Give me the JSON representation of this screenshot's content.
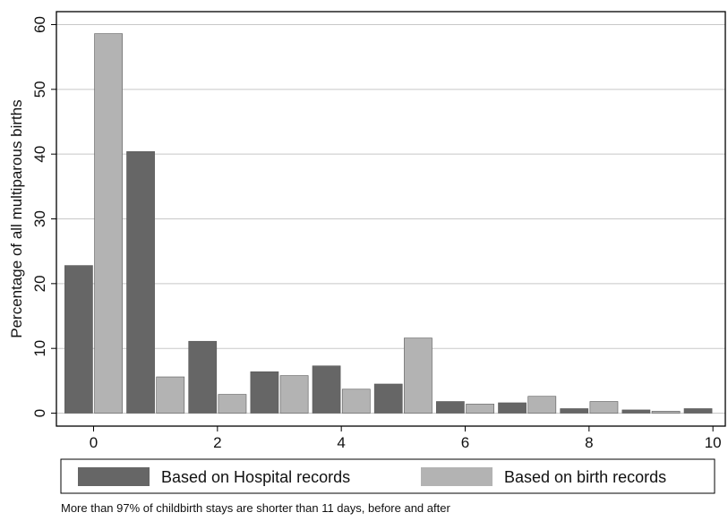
{
  "chart_data": {
    "type": "bar",
    "x": [
      0,
      1,
      2,
      3,
      4,
      5,
      6,
      7,
      8,
      9,
      10
    ],
    "xlim": [
      -0.6,
      10.2
    ],
    "ylim": [
      -2,
      62
    ],
    "xticks": [
      "0",
      "2",
      "4",
      "6",
      "8",
      "10"
    ],
    "yticks": [
      "0",
      "10",
      "20",
      "30",
      "40",
      "50",
      "60"
    ],
    "xlabel": "",
    "ylabel": "Percentage of all multiparous births",
    "grid": true,
    "legend_position": "bottom",
    "series": [
      {
        "name": "Based on Hospital records",
        "color": "#666666",
        "values": [
          22.8,
          40.4,
          11.1,
          6.4,
          7.3,
          4.5,
          1.8,
          1.6,
          0.7,
          0.5,
          0.7
        ]
      },
      {
        "name": "Based on birth records",
        "color": "#b3b3b3",
        "values": [
          58.6,
          5.6,
          2.9,
          5.8,
          3.7,
          11.6,
          1.4,
          2.6,
          1.8,
          0.3,
          null
        ]
      }
    ]
  },
  "note": "More than 97% of childbirth stays are shorter than 11 days, before and after"
}
